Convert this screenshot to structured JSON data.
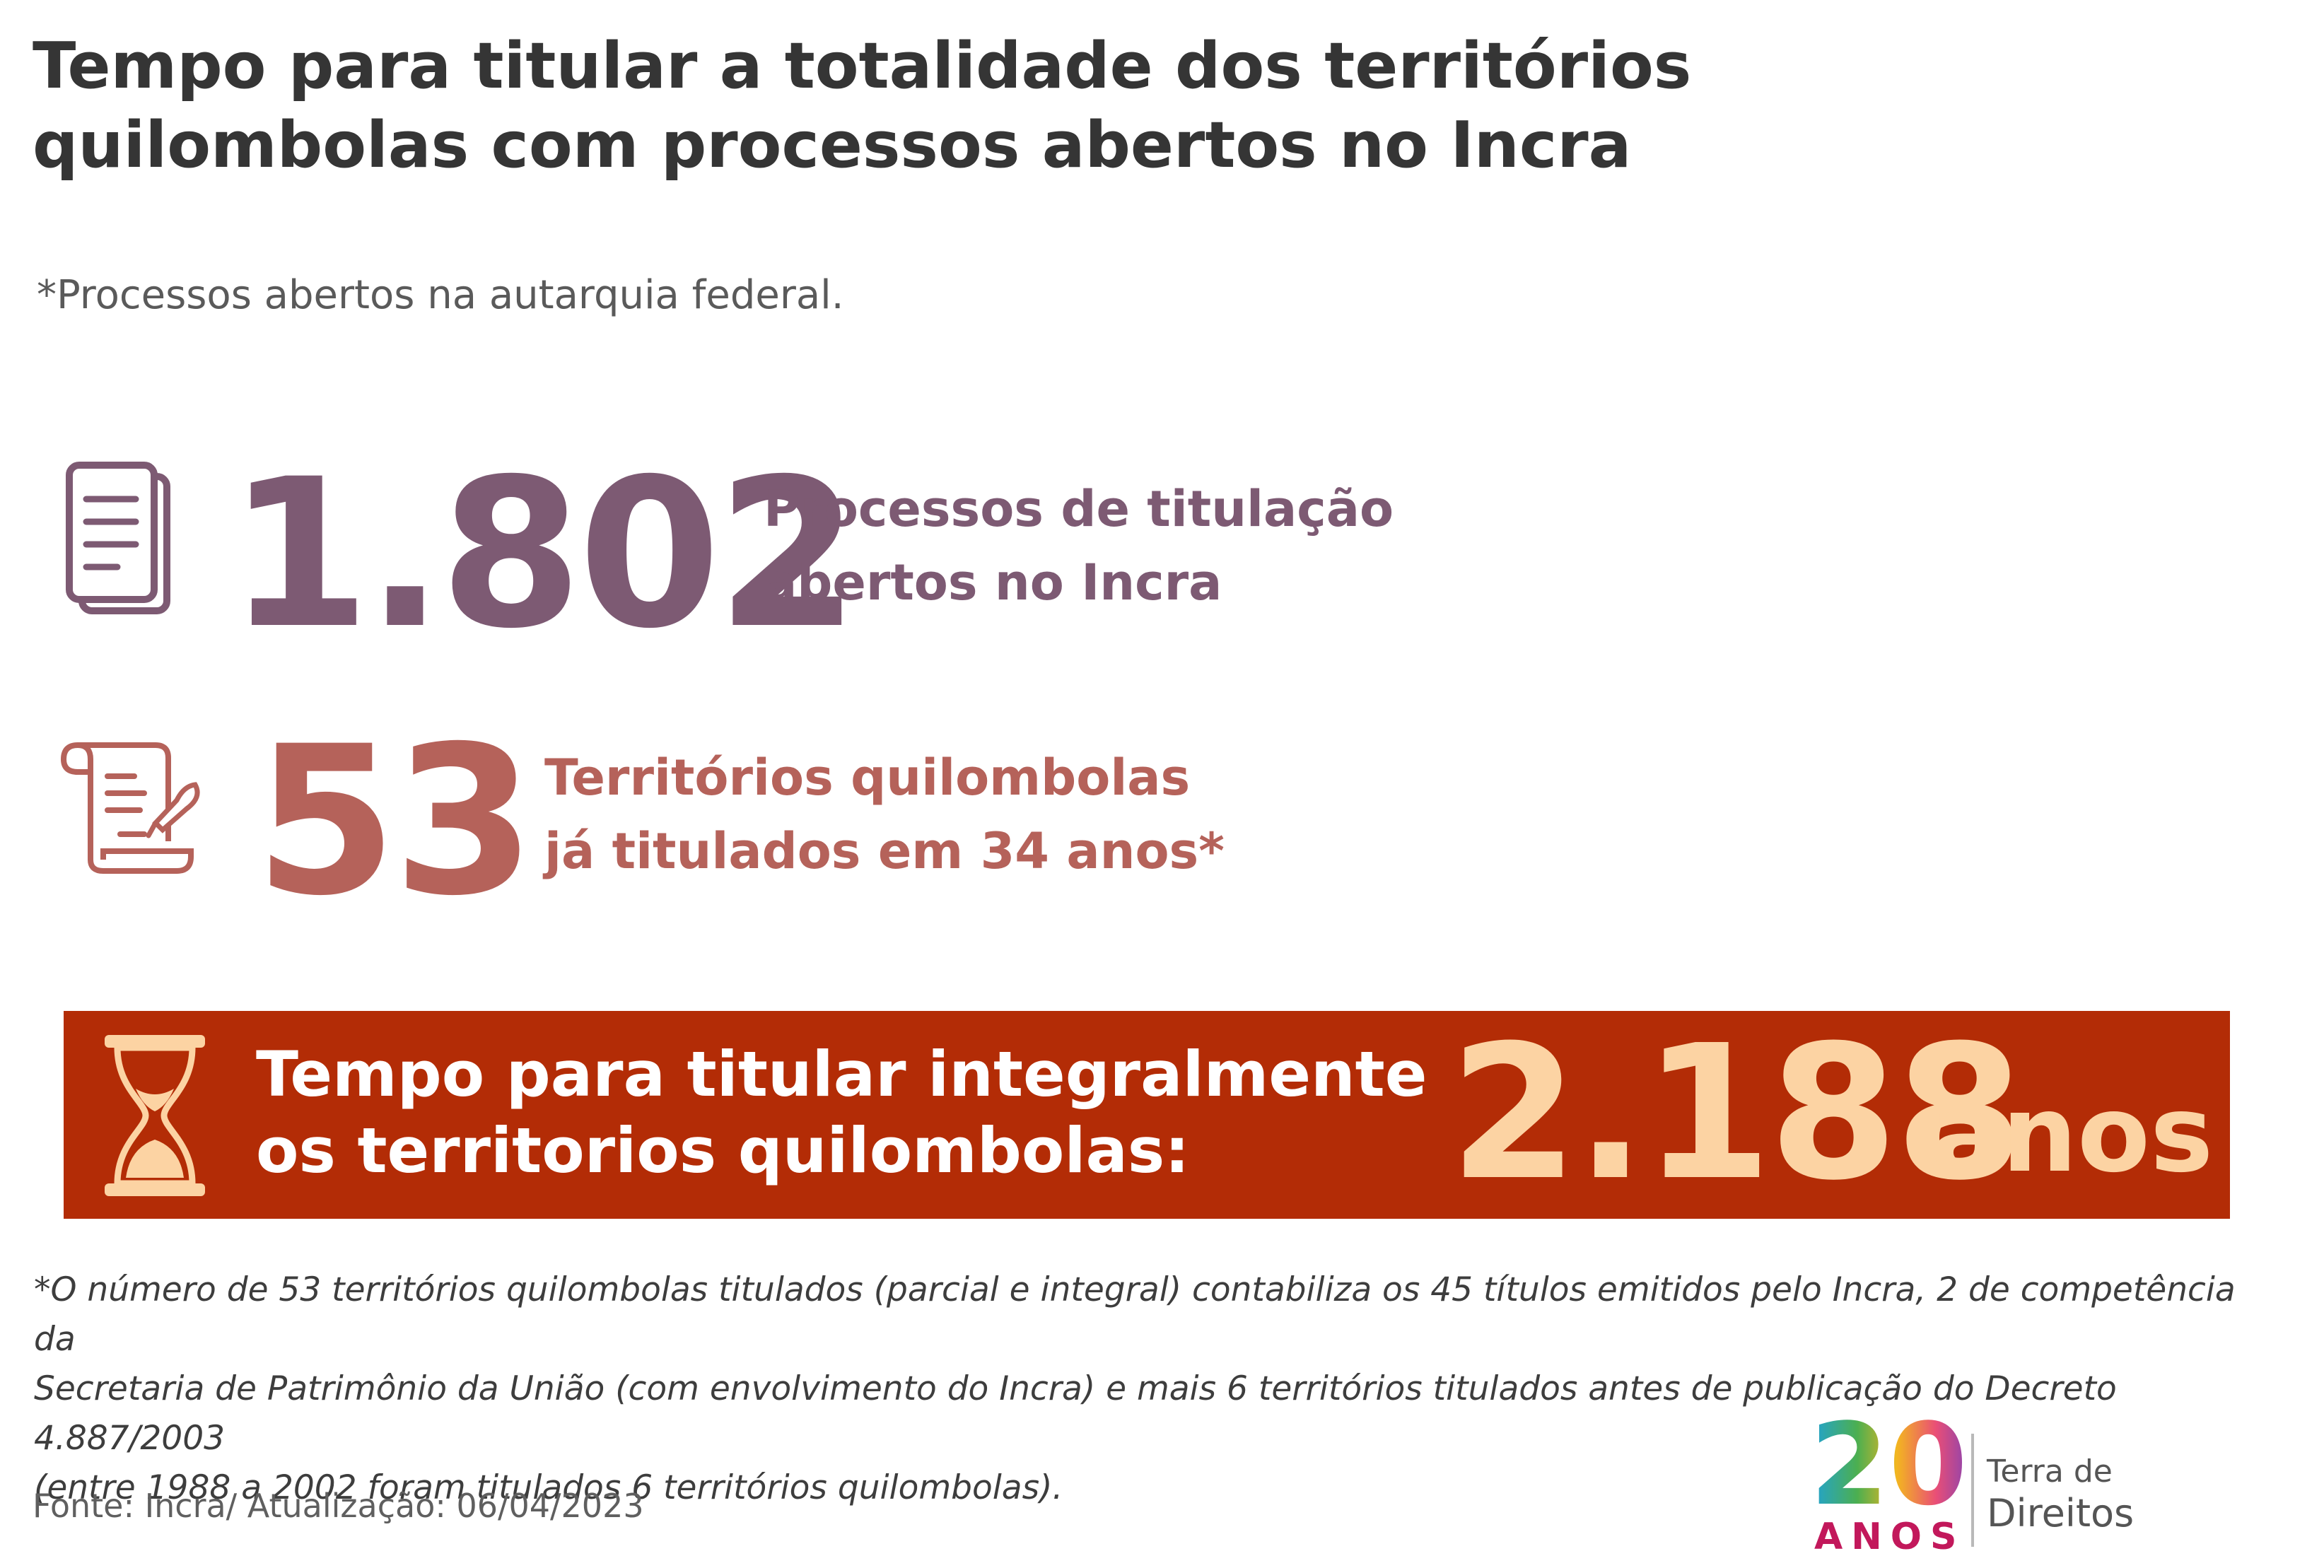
{
  "header": {
    "title_line1": "Tempo para titular a totalidade dos territórios",
    "title_line2": "quilombolas com processos abertos no Incra",
    "subtitle": "*Processos abertos na autarquia federal."
  },
  "stats": [
    {
      "value": "1.802",
      "label_line1": "Processos de titulação",
      "label_line2": "abertos no Incra",
      "icon": "document-stack-icon",
      "color": "#7d5a73"
    },
    {
      "value": "53",
      "label_line1": "Territórios quilombolas",
      "label_line2": "já titulados em 34 anos*",
      "icon": "scroll-quill-icon",
      "color": "#b5625a"
    }
  ],
  "banner": {
    "text_line1": "Tempo para titular integralmente",
    "text_line2": "os territorios quilombolas:",
    "value": "2.188",
    "unit": "anos",
    "icon": "hourglass-icon",
    "background": "#b32c06",
    "value_color": "#fcd3a3"
  },
  "footnote": {
    "line1": "*O número de 53 territórios quilombolas titulados (parcial e integral) contabiliza os 45 títulos emitidos pelo Incra, 2 de competência da",
    "line2": "Secretaria de Patrimônio da União (com envolvimento do Incra) e mais 6 territórios titulados antes de publicação do Decreto  4.887/2003",
    "line3": "(entre 1988 a 2002 foram titulados 6 territórios quilombolas)."
  },
  "source": "Fonte: Incra/ Atualização: 06/04/2023",
  "logo": {
    "number": "20",
    "anos": "ANOS",
    "org_line1": "Terra de",
    "org_line2": "Direitos"
  }
}
